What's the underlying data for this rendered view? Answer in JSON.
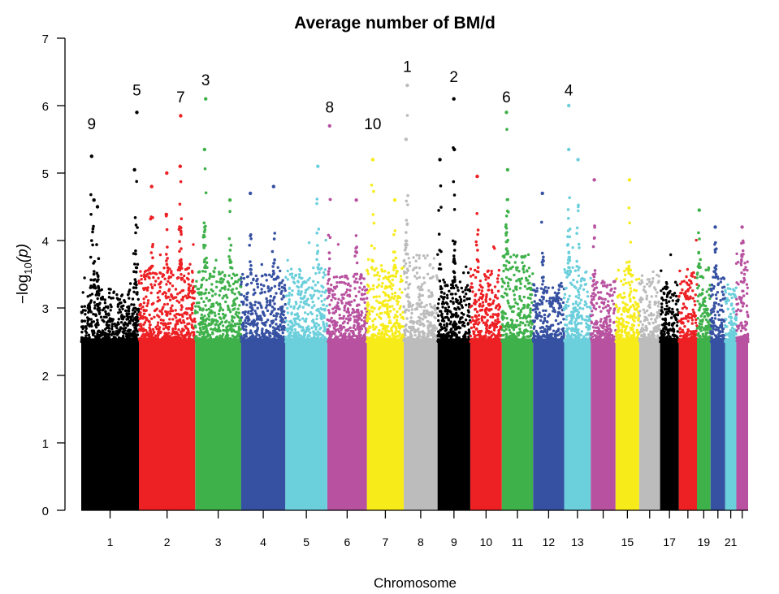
{
  "chart_data": {
    "type": "scatter",
    "subtype": "manhattan",
    "title": "Average number of BM/d",
    "xlabel": "Chromosome",
    "ylabel_main": "−log",
    "ylabel_sub": "10",
    "ylabel_var": "(p)",
    "ylim": [
      0,
      7
    ],
    "yticks": [
      "0",
      "1",
      "2",
      "3",
      "4",
      "5",
      "6",
      "7"
    ],
    "grid": false,
    "legend": "none",
    "chromosomes": [
      {
        "chr": 1,
        "label": "1",
        "color": "#000000",
        "start": 0,
        "size": 249,
        "base_max": 3.3
      },
      {
        "chr": 2,
        "label": "2",
        "color": "#ed2024",
        "start": 249,
        "size": 243,
        "base_max": 3.6
      },
      {
        "chr": 3,
        "label": "3",
        "color": "#3fb14a",
        "start": 492,
        "size": 198,
        "base_max": 3.6
      },
      {
        "chr": 4,
        "label": "4",
        "color": "#3651a2",
        "start": 690,
        "size": 191,
        "base_max": 3.5
      },
      {
        "chr": 5,
        "label": "5",
        "color": "#6ccfdc",
        "start": 881,
        "size": 181,
        "base_max": 3.6
      },
      {
        "chr": 6,
        "label": "6",
        "color": "#b852a0",
        "start": 1062,
        "size": 171,
        "base_max": 3.5
      },
      {
        "chr": 7,
        "label": "7",
        "color": "#f7ec1a",
        "start": 1233,
        "size": 159,
        "base_max": 3.6
      },
      {
        "chr": 8,
        "label": "8",
        "color": "#bcbcbc",
        "start": 1392,
        "size": 146,
        "base_max": 3.8
      },
      {
        "chr": 9,
        "label": "9",
        "color": "#000000",
        "start": 1538,
        "size": 141,
        "base_max": 3.4
      },
      {
        "chr": 10,
        "label": "10",
        "color": "#ed2024",
        "start": 1679,
        "size": 136,
        "base_max": 3.6
      },
      {
        "chr": 11,
        "label": "11",
        "color": "#3fb14a",
        "start": 1815,
        "size": 135,
        "base_max": 3.8
      },
      {
        "chr": 12,
        "label": "12",
        "color": "#3651a2",
        "start": 1950,
        "size": 134,
        "base_max": 3.4
      },
      {
        "chr": 13,
        "label": "13",
        "color": "#6ccfdc",
        "start": 2084,
        "size": 115,
        "base_max": 3.6
      },
      {
        "chr": 14,
        "label": "",
        "color": "#b852a0",
        "start": 2199,
        "size": 107,
        "base_max": 3.4
      },
      {
        "chr": 15,
        "label": "15",
        "color": "#f7ec1a",
        "start": 2306,
        "size": 102,
        "base_max": 3.5
      },
      {
        "chr": 16,
        "label": "",
        "color": "#bcbcbc",
        "start": 2408,
        "size": 90,
        "base_max": 3.5
      },
      {
        "chr": 17,
        "label": "17",
        "color": "#000000",
        "start": 2498,
        "size": 81,
        "base_max": 3.4
      },
      {
        "chr": 18,
        "label": "",
        "color": "#ed2024",
        "start": 2579,
        "size": 78,
        "base_max": 3.6
      },
      {
        "chr": 19,
        "label": "19",
        "color": "#3fb14a",
        "start": 2657,
        "size": 59,
        "base_max": 3.6
      },
      {
        "chr": 20,
        "label": "",
        "color": "#3651a2",
        "start": 2716,
        "size": 63,
        "base_max": 3.5
      },
      {
        "chr": 21,
        "label": "21",
        "color": "#6ccfdc",
        "start": 2779,
        "size": 48,
        "base_max": 3.3
      },
      {
        "chr": 22,
        "label": "",
        "color": "#b852a0",
        "start": 2827,
        "size": 51,
        "base_max": 3.7
      }
    ],
    "x_total": 2878,
    "peaks": [
      {
        "chr": 1,
        "pos": 45,
        "y": 5.25
      },
      {
        "chr": 1,
        "pos": 55,
        "y": 4.6
      },
      {
        "chr": 1,
        "pos": 70,
        "y": 4.5
      },
      {
        "chr": 1,
        "pos": 240,
        "y": 5.9
      },
      {
        "chr": 1,
        "pos": 230,
        "y": 5.05
      },
      {
        "chr": 2,
        "pos": 55,
        "y": 4.8
      },
      {
        "chr": 2,
        "pos": 120,
        "y": 5.0
      },
      {
        "chr": 2,
        "pos": 180,
        "y": 5.85
      },
      {
        "chr": 2,
        "pos": 178,
        "y": 5.1
      },
      {
        "chr": 3,
        "pos": 45,
        "y": 6.1
      },
      {
        "chr": 3,
        "pos": 40,
        "y": 5.35
      },
      {
        "chr": 3,
        "pos": 150,
        "y": 4.6
      },
      {
        "chr": 4,
        "pos": 40,
        "y": 4.7
      },
      {
        "chr": 4,
        "pos": 140,
        "y": 4.8
      },
      {
        "chr": 5,
        "pos": 140,
        "y": 5.1
      },
      {
        "chr": 6,
        "pos": 10,
        "y": 5.7
      },
      {
        "chr": 6,
        "pos": 125,
        "y": 4.6
      },
      {
        "chr": 7,
        "pos": 25,
        "y": 5.2
      },
      {
        "chr": 7,
        "pos": 120,
        "y": 4.6
      },
      {
        "chr": 8,
        "pos": 15,
        "y": 6.3
      },
      {
        "chr": 8,
        "pos": 10,
        "y": 5.5
      },
      {
        "chr": 9,
        "pos": 10,
        "y": 5.2
      },
      {
        "chr": 9,
        "pos": 70,
        "y": 6.1
      },
      {
        "chr": 9,
        "pos": 72,
        "y": 5.35
      },
      {
        "chr": 10,
        "pos": 30,
        "y": 4.95
      },
      {
        "chr": 11,
        "pos": 20,
        "y": 5.9
      },
      {
        "chr": 11,
        "pos": 25,
        "y": 5.05
      },
      {
        "chr": 12,
        "pos": 40,
        "y": 4.7
      },
      {
        "chr": 13,
        "pos": 20,
        "y": 6.0
      },
      {
        "chr": 13,
        "pos": 20,
        "y": 5.35
      },
      {
        "chr": 13,
        "pos": 60,
        "y": 5.2
      },
      {
        "chr": 14,
        "pos": 15,
        "y": 4.9
      },
      {
        "chr": 15,
        "pos": 60,
        "y": 4.9
      },
      {
        "chr": 19,
        "pos": 10,
        "y": 4.45
      },
      {
        "chr": 20,
        "pos": 20,
        "y": 4.2
      },
      {
        "chr": 22,
        "pos": 25,
        "y": 4.2
      }
    ],
    "annotations": [
      {
        "text": "9",
        "chr": 1,
        "pos": 45,
        "y": 5.65
      },
      {
        "text": "5",
        "chr": 1,
        "pos": 240,
        "y": 6.15
      },
      {
        "text": "7",
        "chr": 2,
        "pos": 180,
        "y": 6.05
      },
      {
        "text": "3",
        "chr": 3,
        "pos": 45,
        "y": 6.3
      },
      {
        "text": "8",
        "chr": 6,
        "pos": 10,
        "y": 5.9
      },
      {
        "text": "10",
        "chr": 7,
        "pos": 25,
        "y": 5.65
      },
      {
        "text": "1",
        "chr": 8,
        "pos": 15,
        "y": 6.5
      },
      {
        "text": "2",
        "chr": 9,
        "pos": 70,
        "y": 6.35
      },
      {
        "text": "6",
        "chr": 11,
        "pos": 20,
        "y": 6.05
      },
      {
        "text": "4",
        "chr": 13,
        "pos": 20,
        "y": 6.15
      }
    ]
  }
}
